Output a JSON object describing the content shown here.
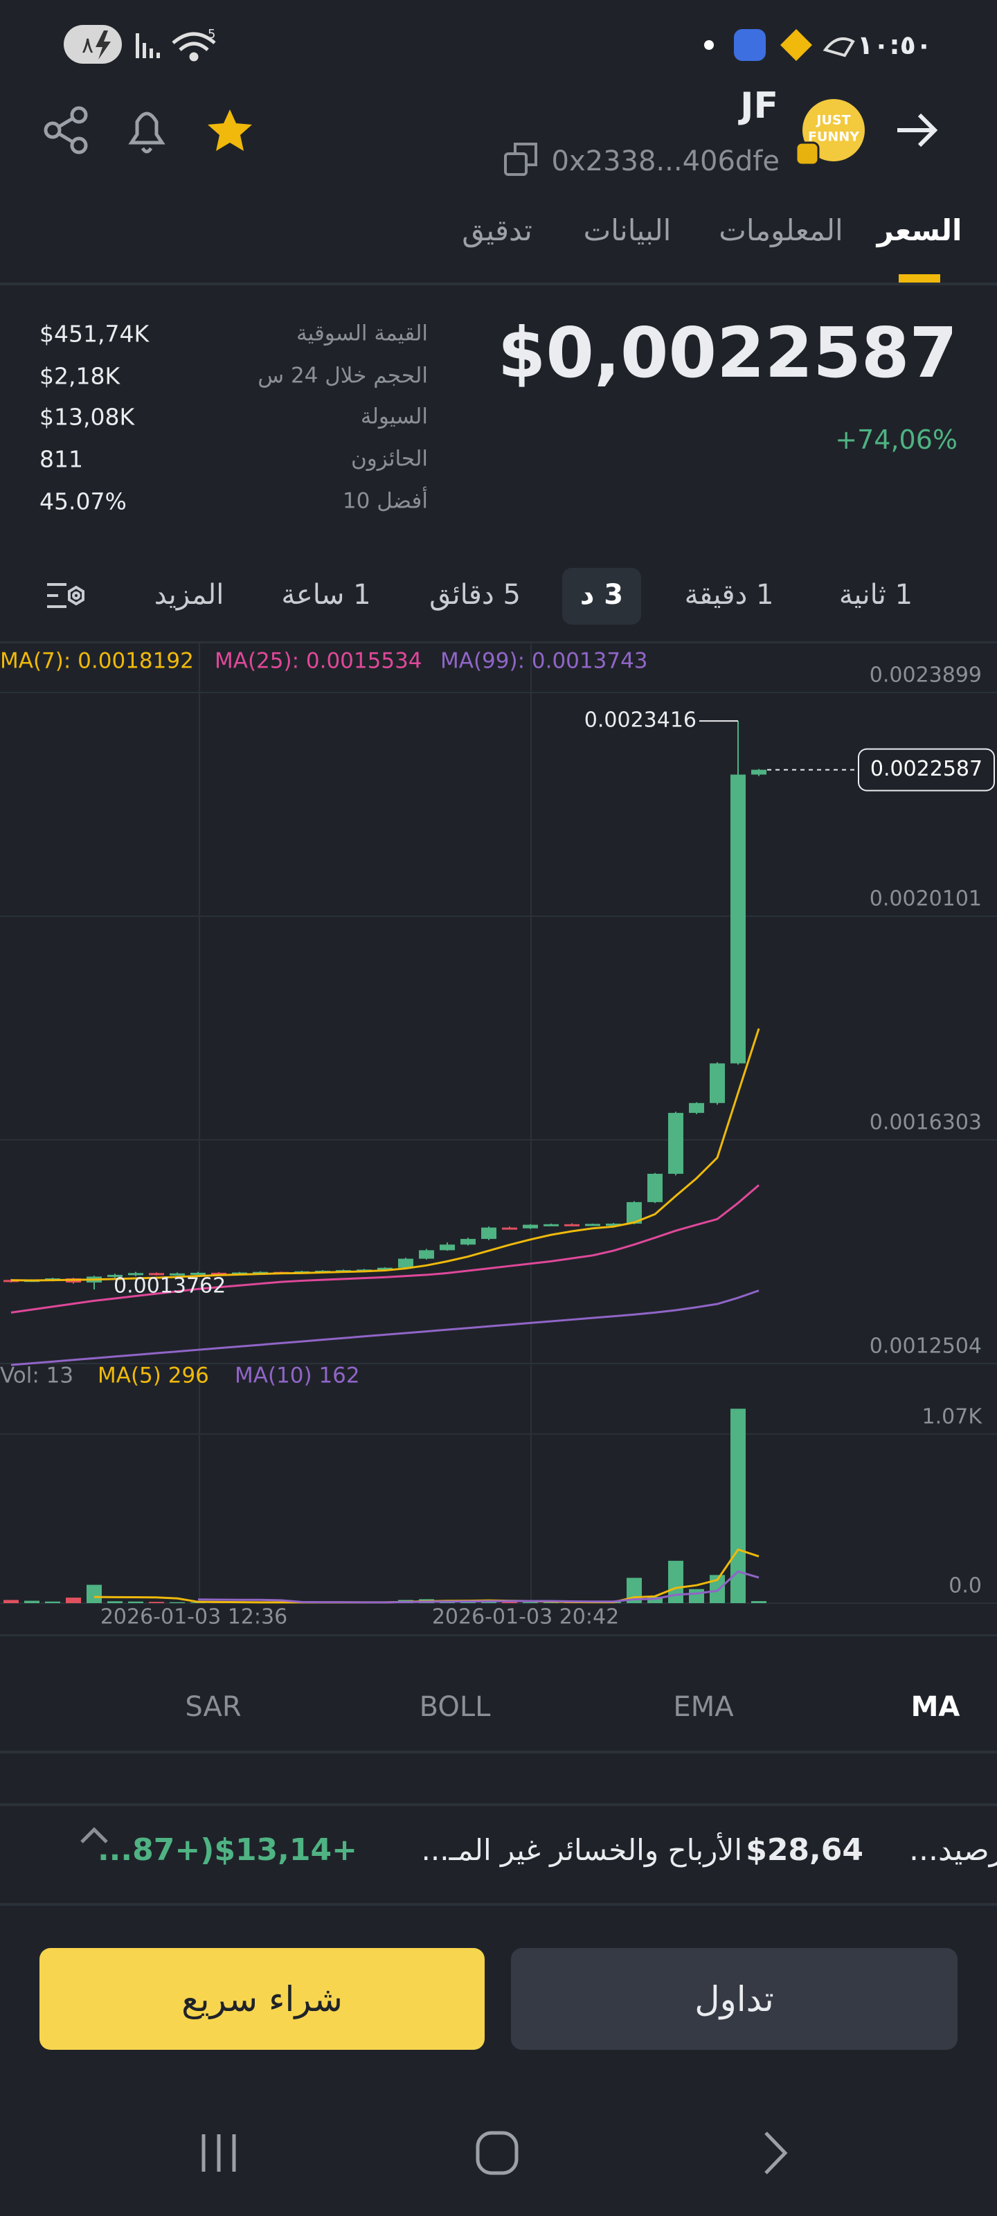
{
  "status_bar": {
    "time": "١٠:٥٠",
    "battery": "٨",
    "wifi_badge": "5"
  },
  "header": {
    "symbol": "JF",
    "address": "0x2338...406dfe",
    "logo_text": [
      "JUST",
      "FUNNY"
    ]
  },
  "tabs": [
    "السعر",
    "المعلومات",
    "البيانات",
    "تدقيق"
  ],
  "stats": {
    "price": "$0,0022587",
    "change": "+74,06%",
    "rows": [
      {
        "label": "القيمة السوقية",
        "value": "$451,74K"
      },
      {
        "label": "الحجم خلال 24 س",
        "value": "$2,18K"
      },
      {
        "label": "السيولة",
        "value": "$13,08K"
      },
      {
        "label": "الحائزون",
        "value": "811"
      },
      {
        "label": "أفضل 10",
        "value": "45.07%"
      }
    ]
  },
  "intervals": [
    "1 ثانية",
    "1 دقيقة",
    "3 د",
    "5 دقائق",
    "1 ساعة",
    "المزيد"
  ],
  "chart_data": {
    "type": "candlestick",
    "up_color": "#4fb383",
    "down_color": "#e0515f",
    "grid": true,
    "ylim": [
      0.0012504,
      0.0023899
    ],
    "yticks": [
      0.0023899,
      0.0020101,
      0.0016303,
      0.0012504
    ],
    "x_labels": [
      "2026-01-03 12:36",
      "2026-01-03 20:42"
    ],
    "open": [
      0.0013923,
      0.00139,
      0.0013925,
      0.001395,
      0.001388,
      0.001398,
      0.001401,
      0.001404,
      0.001401,
      0.0014035,
      0.0014045,
      0.0014025,
      0.001405,
      0.001406,
      0.001404,
      0.001407,
      0.001408,
      0.001409,
      0.00141,
      0.001413,
      0.0014284,
      0.0014428,
      0.0014524,
      0.001462,
      0.0014813,
      0.00148,
      0.0014861,
      0.001487,
      0.001486,
      0.0014875,
      0.001488,
      0.0015245,
      0.0015726,
      0.001676,
      0.0016928,
      0.0017601,
      0.0022505
    ],
    "high": [
      0.001394,
      0.0013935,
      0.001396,
      0.001396,
      0.0013995,
      0.001403,
      0.001406,
      0.001405,
      0.001405,
      0.001406,
      0.0014055,
      0.001406,
      0.001407,
      0.0014065,
      0.001408,
      0.001409,
      0.00141,
      0.001411,
      0.001414,
      0.00143,
      0.001445,
      0.001456,
      0.001464,
      0.001483,
      0.001483,
      0.001487,
      0.001488,
      0.0014885,
      0.001488,
      0.001489,
      0.001526,
      0.001574,
      0.001678,
      0.001694,
      0.001762,
      0.0023416,
      0.00226
    ],
    "low": [
      0.001388,
      0.001389,
      0.00139,
      0.001386,
      0.0013762,
      0.001396,
      0.001399,
      0.0014,
      0.0014,
      0.001402,
      0.0014015,
      0.001402,
      0.001404,
      0.001403,
      0.0014035,
      0.001406,
      0.001407,
      0.001408,
      0.001409,
      0.001412,
      0.001427,
      0.001442,
      0.001451,
      0.00146,
      0.001478,
      0.001479,
      0.001484,
      0.001485,
      0.001485,
      0.001486,
      0.001487,
      0.001523,
      0.00157,
      0.001674,
      0.00169,
      0.001758,
      0.002248
    ],
    "close": [
      0.00139,
      0.0013925,
      0.001395,
      0.001388,
      0.001398,
      0.001401,
      0.001404,
      0.001401,
      0.0014035,
      0.0014045,
      0.0014025,
      0.001405,
      0.001406,
      0.001404,
      0.001407,
      0.001408,
      0.001409,
      0.00141,
      0.001413,
      0.0014284,
      0.0014428,
      0.0014524,
      0.001462,
      0.0014813,
      0.00148,
      0.0014861,
      0.001487,
      0.001486,
      0.0014875,
      0.001488,
      0.0015245,
      0.0015726,
      0.001676,
      0.0016928,
      0.0017601,
      0.0022505,
      0.0022587
    ],
    "ma_series": [
      {
        "name": "MA(7): 0.0018192",
        "color": "#f0b90b",
        "values": [
          0.001392,
          0.0013915,
          0.001392,
          0.0013925,
          0.001393,
          0.001394,
          0.001395,
          0.001396,
          0.0013975,
          0.001399,
          0.0014005,
          0.0014015,
          0.0014025,
          0.0014035,
          0.001404,
          0.001405,
          0.001406,
          0.001407,
          0.0014085,
          0.001412,
          0.001417,
          0.001424,
          0.001432,
          0.001442,
          0.001452,
          0.001461,
          0.001469,
          0.001475,
          0.00148,
          0.001483,
          0.00149,
          0.001504,
          0.001535,
          0.001565,
          0.0016,
          0.00171,
          0.0018192
        ]
      },
      {
        "name": "MA(25): 0.0015534",
        "color": "#e0489a",
        "values": [
          0.001337,
          0.001342,
          0.001347,
          0.001352,
          0.001357,
          0.001361,
          0.001365,
          0.001369,
          0.001373,
          0.001377,
          0.00138,
          0.001383,
          0.001386,
          0.001389,
          0.001391,
          0.0013925,
          0.001394,
          0.0013955,
          0.001397,
          0.001399,
          0.001401,
          0.001404,
          0.001408,
          0.001412,
          0.001416,
          0.00142,
          0.001424,
          0.001429,
          0.001434,
          0.001442,
          0.0014524,
          0.001464,
          0.001476,
          0.001486,
          0.0014957,
          0.001523,
          0.0015534
        ]
      },
      {
        "name": "MA(99): 0.0013743",
        "color": "#9165c8",
        "values": [
          0.001248,
          0.0012509,
          0.0012537,
          0.0012566,
          0.0012594,
          0.0012623,
          0.0012651,
          0.001268,
          0.0012708,
          0.0012737,
          0.0012765,
          0.0012794,
          0.0012822,
          0.0012851,
          0.0012879,
          0.0012908,
          0.0012936,
          0.0012965,
          0.0012993,
          0.0013022,
          0.001305,
          0.0013079,
          0.0013107,
          0.0013136,
          0.0013164,
          0.0013193,
          0.0013221,
          0.001325,
          0.0013278,
          0.0013307,
          0.0013336,
          0.001337,
          0.001341,
          0.001346,
          0.0013515,
          0.001362,
          0.0013743
        ]
      }
    ],
    "volume": {
      "name": "Vol: 13",
      "ylim": [
        0,
        1516
      ],
      "yticks": [
        {
          "value": 0,
          "label": "0.0"
        },
        {
          "value": 1070,
          "label": "1.07K"
        }
      ],
      "values": [
        20,
        15,
        10,
        35,
        116,
        12,
        10,
        8,
        6,
        5,
        5,
        6,
        4,
        5,
        6,
        4,
        5,
        6,
        5,
        20,
        25,
        12,
        10,
        18,
        8,
        6,
        4,
        5,
        6,
        8,
        160,
        40,
        268,
        89,
        178,
        1230,
        13
      ],
      "series": [
        {
          "name": "MA(5) 296",
          "color": "#f0b90b",
          "values": [
            null,
            null,
            null,
            null,
            39,
            38,
            37,
            36,
            30,
            8,
            7,
            6,
            5,
            5,
            5,
            5,
            5,
            5,
            5,
            8,
            12,
            14,
            15,
            17,
            15,
            13,
            10,
            7,
            6,
            6,
            37,
            43,
            96,
            113,
            147,
            339,
            296
          ]
        },
        {
          "name": "MA(10) 162",
          "color": "#9165c8",
          "values": [
            null,
            null,
            null,
            null,
            null,
            null,
            null,
            null,
            null,
            23,
            22,
            21,
            21,
            18,
            7,
            6,
            6,
            5,
            5,
            7,
            9,
            10,
            11,
            12,
            13,
            13,
            13,
            11,
            10,
            10,
            24,
            27,
            53,
            61,
            78,
            200,
            162
          ]
        }
      ]
    }
  },
  "indicators": [
    "SAR",
    "BOLL",
    "EMA",
    "MA"
  ],
  "pnl": {
    "balance": "رصيد...",
    "amount": "$28,64",
    "label": "الأرباح والخسائر غير المـ...",
    "change": "+$13,14(+87..."
  },
  "buttons": {
    "trade": "تداول",
    "quick_buy": "شراء سريع"
  }
}
